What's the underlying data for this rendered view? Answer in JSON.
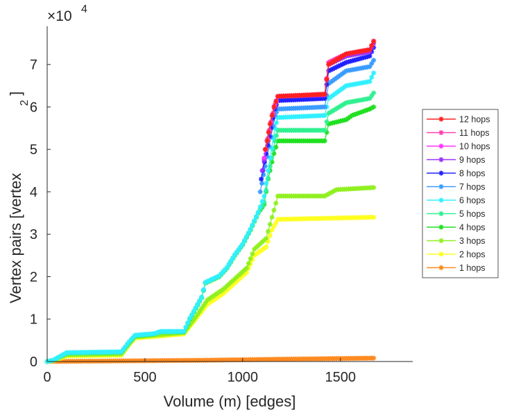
{
  "chart_data": {
    "type": "line",
    "title": "",
    "xlabel": "Volume (m) [edges]",
    "ylabel": "Vertex pairs [vertex",
    "ylabel_superscript": "2",
    "ylabel_close": "]",
    "y_exponent_label": "×10",
    "y_exponent_power": "4",
    "xlim": [
      0,
      1870
    ],
    "ylim": [
      0,
      79000
    ],
    "xticks": [
      0,
      500,
      1000,
      1500
    ],
    "xtick_labels": [
      "0",
      "500",
      "1000",
      "1500"
    ],
    "yticks": [
      0,
      10000,
      20000,
      30000,
      40000,
      50000,
      60000,
      70000
    ],
    "ytick_labels": [
      "0",
      "1",
      "2",
      "3",
      "4",
      "5",
      "6",
      "7"
    ],
    "grid": false,
    "legend_position": "outside-right",
    "series": [
      {
        "name": "12 hops",
        "color": "#ff2020",
        "points": [
          [
            1115,
            50000
          ],
          [
            1125,
            52000
          ],
          [
            1140,
            56000
          ],
          [
            1160,
            60000
          ],
          [
            1180,
            62500
          ],
          [
            1420,
            63000
          ],
          [
            1440,
            70000
          ],
          [
            1530,
            72500
          ],
          [
            1650,
            73500
          ],
          [
            1670,
            75500
          ]
        ]
      },
      {
        "name": "11 hops",
        "color": "#ff40b0",
        "points": [
          [
            1118,
            50000
          ],
          [
            1128,
            52500
          ],
          [
            1145,
            56500
          ],
          [
            1165,
            60500
          ],
          [
            1180,
            62500
          ],
          [
            1420,
            63000
          ],
          [
            1440,
            70500
          ],
          [
            1530,
            72500
          ],
          [
            1650,
            73500
          ],
          [
            1670,
            75500
          ]
        ]
      },
      {
        "name": "10 hops",
        "color": "#ff30ff",
        "points": [
          [
            1110,
            48000
          ],
          [
            1125,
            52000
          ],
          [
            1145,
            56500
          ],
          [
            1165,
            60500
          ],
          [
            1180,
            62500
          ],
          [
            1420,
            63000
          ],
          [
            1440,
            70500
          ],
          [
            1530,
            72500
          ],
          [
            1650,
            73500
          ],
          [
            1670,
            75500
          ]
        ]
      },
      {
        "name": "9 hops",
        "color": "#9a30ff",
        "points": [
          [
            1100,
            45000
          ],
          [
            1120,
            50000
          ],
          [
            1145,
            56000
          ],
          [
            1165,
            60000
          ],
          [
            1180,
            62500
          ],
          [
            1420,
            62800
          ],
          [
            1440,
            70000
          ],
          [
            1530,
            72000
          ],
          [
            1650,
            73000
          ],
          [
            1670,
            75000
          ]
        ]
      },
      {
        "name": "8 hops",
        "color": "#2020ff",
        "points": [
          [
            1095,
            43000
          ],
          [
            1120,
            49000
          ],
          [
            1145,
            55000
          ],
          [
            1165,
            59500
          ],
          [
            1180,
            61500
          ],
          [
            1420,
            62000
          ],
          [
            1440,
            68500
          ],
          [
            1530,
            70500
          ],
          [
            1650,
            72000
          ],
          [
            1670,
            74000
          ]
        ]
      },
      {
        "name": "7 hops",
        "color": "#3a9cff",
        "points": [
          [
            1090,
            40000
          ],
          [
            1115,
            46000
          ],
          [
            1145,
            53000
          ],
          [
            1165,
            58000
          ],
          [
            1180,
            59500
          ],
          [
            1420,
            60000
          ],
          [
            1440,
            65500
          ],
          [
            1530,
            68500
          ],
          [
            1650,
            69500
          ],
          [
            1670,
            71000
          ]
        ]
      },
      {
        "name": "6 hops",
        "color": "#30f0ff",
        "points": [
          [
            0,
            0
          ],
          [
            30,
            300
          ],
          [
            100,
            2100
          ],
          [
            380,
            2300
          ],
          [
            420,
            4700
          ],
          [
            450,
            6200
          ],
          [
            550,
            6600
          ],
          [
            580,
            7100
          ],
          [
            700,
            7100
          ],
          [
            730,
            10200
          ],
          [
            790,
            15200
          ],
          [
            810,
            18700
          ],
          [
            880,
            20200
          ],
          [
            920,
            22200
          ],
          [
            960,
            25200
          ],
          [
            1000,
            27700
          ],
          [
            1040,
            31200
          ],
          [
            1080,
            35200
          ],
          [
            1110,
            39000
          ],
          [
            1140,
            48000
          ],
          [
            1165,
            55000
          ],
          [
            1180,
            57500
          ],
          [
            1420,
            58000
          ],
          [
            1440,
            62000
          ],
          [
            1530,
            65000
          ],
          [
            1650,
            66000
          ],
          [
            1670,
            68000
          ]
        ]
      },
      {
        "name": "5 hops",
        "color": "#30f090",
        "points": [
          [
            0,
            0
          ],
          [
            30,
            300
          ],
          [
            100,
            2000
          ],
          [
            380,
            2200
          ],
          [
            420,
            4600
          ],
          [
            450,
            6100
          ],
          [
            550,
            6500
          ],
          [
            580,
            7000
          ],
          [
            700,
            7000
          ],
          [
            730,
            10100
          ],
          [
            790,
            15100
          ],
          [
            810,
            18600
          ],
          [
            880,
            20100
          ],
          [
            920,
            22100
          ],
          [
            960,
            25100
          ],
          [
            1000,
            27600
          ],
          [
            1040,
            31100
          ],
          [
            1080,
            35100
          ],
          [
            1110,
            37500
          ],
          [
            1140,
            46000
          ],
          [
            1165,
            52000
          ],
          [
            1180,
            54500
          ],
          [
            1420,
            54500
          ],
          [
            1440,
            58500
          ],
          [
            1530,
            61000
          ],
          [
            1650,
            62000
          ],
          [
            1670,
            63300
          ]
        ]
      },
      {
        "name": "4 hops",
        "color": "#20e020",
        "points": [
          [
            0,
            0
          ],
          [
            30,
            300
          ],
          [
            100,
            2000
          ],
          [
            380,
            2200
          ],
          [
            420,
            4500
          ],
          [
            450,
            6000
          ],
          [
            550,
            6500
          ],
          [
            580,
            7000
          ],
          [
            700,
            7000
          ],
          [
            730,
            10000
          ],
          [
            790,
            15000
          ],
          [
            810,
            18500
          ],
          [
            880,
            20000
          ],
          [
            920,
            22000
          ],
          [
            960,
            25000
          ],
          [
            1000,
            27500
          ],
          [
            1040,
            31000
          ],
          [
            1080,
            35000
          ],
          [
            1110,
            37000
          ],
          [
            1130,
            43000
          ],
          [
            1160,
            49000
          ],
          [
            1180,
            52000
          ],
          [
            1420,
            52000
          ],
          [
            1440,
            56000
          ],
          [
            1530,
            57000
          ],
          [
            1560,
            58000
          ],
          [
            1650,
            59500
          ],
          [
            1670,
            60000
          ]
        ]
      },
      {
        "name": "3 hops",
        "color": "#90f020",
        "points": [
          [
            0,
            0
          ],
          [
            30,
            200
          ],
          [
            100,
            1600
          ],
          [
            380,
            1800
          ],
          [
            420,
            4200
          ],
          [
            450,
            5800
          ],
          [
            700,
            6800
          ],
          [
            760,
            10500
          ],
          [
            820,
            14500
          ],
          [
            900,
            17000
          ],
          [
            960,
            19500
          ],
          [
            1020,
            22000
          ],
          [
            1060,
            26500
          ],
          [
            1120,
            29000
          ],
          [
            1150,
            34000
          ],
          [
            1180,
            39000
          ],
          [
            1420,
            39000
          ],
          [
            1480,
            40500
          ],
          [
            1670,
            41000
          ]
        ]
      },
      {
        "name": "2 hops",
        "color": "#ffff20",
        "points": [
          [
            0,
            0
          ],
          [
            30,
            150
          ],
          [
            100,
            1300
          ],
          [
            380,
            1500
          ],
          [
            420,
            4000
          ],
          [
            450,
            5500
          ],
          [
            700,
            6500
          ],
          [
            760,
            10000
          ],
          [
            820,
            13500
          ],
          [
            900,
            16000
          ],
          [
            960,
            18500
          ],
          [
            1020,
            21000
          ],
          [
            1060,
            25000
          ],
          [
            1120,
            27000
          ],
          [
            1150,
            31000
          ],
          [
            1180,
            33500
          ],
          [
            1670,
            34000
          ]
        ]
      },
      {
        "name": "1 hops",
        "color": "#ff8a20",
        "points": [
          [
            0,
            0
          ],
          [
            400,
            150
          ],
          [
            800,
            300
          ],
          [
            1200,
            550
          ],
          [
            1670,
            800
          ]
        ]
      }
    ]
  }
}
